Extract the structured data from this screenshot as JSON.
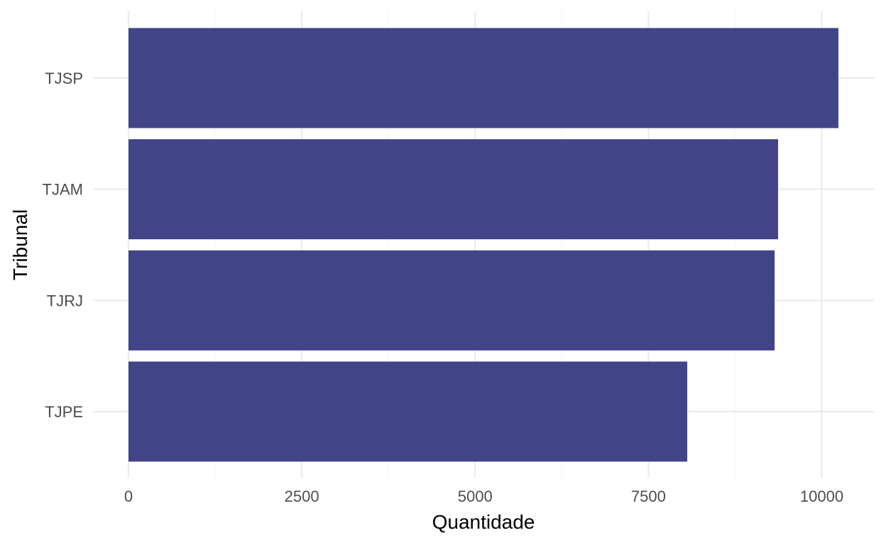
{
  "chart_data": {
    "type": "bar",
    "orientation": "horizontal",
    "title": "",
    "xlabel": "Quantidade",
    "ylabel": "Tribunal",
    "categories": [
      "TJSP",
      "TJAM",
      "TJRJ",
      "TJPE"
    ],
    "values": [
      10240,
      9370,
      9320,
      8060
    ],
    "xlim": [
      0,
      10500
    ],
    "x_ticks": [
      0,
      2500,
      5000,
      7500,
      10000
    ],
    "x_tick_labels": [
      "0",
      "2500",
      "5000",
      "7500",
      "10000"
    ],
    "grid": true,
    "legend": "none",
    "bar_color": "#414487"
  }
}
